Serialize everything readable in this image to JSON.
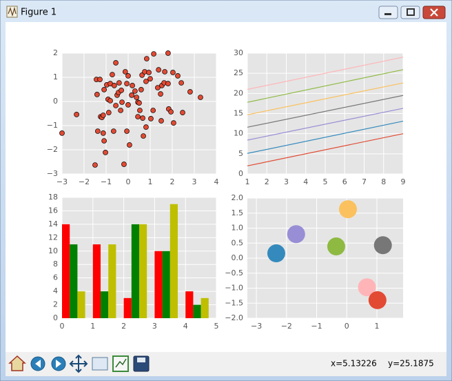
{
  "window": {
    "title": "Figure 1"
  },
  "status": {
    "x": "x=5.13226",
    "y": "y=25.1875"
  },
  "chart_data": [
    {
      "type": "scatter",
      "color": "#E24A33",
      "grid": true,
      "x": [
        -3,
        -2.34,
        -1.5,
        -1.44,
        -1.28,
        -1.41,
        -1.38,
        -1.25,
        -1.19,
        -1.13,
        -1.09,
        -1.03,
        -1.09,
        -1.13,
        -0.97,
        -0.91,
        -0.88,
        -0.81,
        -0.81,
        -0.72,
        -0.66,
        -0.63,
        -0.56,
        -0.56,
        -0.5,
        -0.44,
        -0.41,
        -0.34,
        -0.31,
        -0.28,
        -0.19,
        -0.13,
        -0.06,
        -0.06,
        0,
        0,
        0.06,
        0.16,
        0.19,
        0.31,
        0.38,
        0.44,
        0.44,
        0.5,
        0.53,
        0.59,
        0.63,
        0.66,
        0.69,
        0.75,
        0.81,
        0.81,
        0.94,
        0.84,
        1,
        1.03,
        1.13,
        1.16,
        1.34,
        1.38,
        1.47,
        1.5,
        1.53,
        1.63,
        1.66,
        1.81,
        1.84,
        1.81,
        1.94,
        2.03,
        2.06,
        2.25,
        2.41,
        2.47,
        2.81,
        3.28
      ],
      "values": [
        -1.31,
        -0.54,
        -2.63,
        0.91,
        0.91,
        0.29,
        -1.23,
        -0.63,
        -0.66,
        -1.31,
        -1.63,
        -2.11,
        0.49,
        -0.57,
        0.69,
        0.09,
        -0.46,
        0.03,
        0.74,
        1.11,
        -1.23,
        0.66,
        1.6,
        -0.17,
        0.26,
        0.37,
        0.77,
        -0.37,
        0.46,
        -0.03,
        -2.6,
        1.23,
        0.74,
        -1.23,
        -0.14,
        1.06,
        -1.8,
        0.26,
        0.66,
        0.43,
        0.17,
        -0.03,
        -0.63,
        -0.06,
        -0.37,
        0.49,
        1.09,
        -0.69,
        -1.43,
        1.23,
        0.83,
        -1.06,
        1.2,
        1.77,
        0.94,
        -0.71,
        -0.37,
        1.97,
        0.57,
        1.31,
        0.31,
        -0.8,
        0.66,
        0.77,
        1.23,
        0.74,
        -0.31,
        2,
        -0.43,
        1.2,
        -0.89,
        1.06,
        0.77,
        -0.46,
        0.4,
        0.17
      ],
      "xlim": [
        -3,
        4
      ],
      "ylim": [
        -3,
        2
      ],
      "xticks": [
        {
          "value": -3,
          "label": "−3"
        },
        {
          "value": -2,
          "label": "−2"
        },
        {
          "value": -1,
          "label": "−1"
        },
        0,
        1,
        2,
        3,
        4
      ],
      "yticks": [
        {
          "value": -3,
          "label": "−3"
        },
        {
          "value": -2,
          "label": "−2"
        },
        {
          "value": -1,
          "label": "−1"
        },
        0,
        1,
        2
      ]
    },
    {
      "type": "line",
      "grid": true,
      "x": [
        1,
        9
      ],
      "series": [
        {
          "color": "#E24A33",
          "values": [
            2,
            10
          ]
        },
        {
          "color": "#348ABD",
          "values": [
            5.1,
            13.1
          ]
        },
        {
          "color": "#988ED5",
          "values": [
            8.4,
            16.3
          ]
        },
        {
          "color": "#777777",
          "values": [
            11.6,
            19.5
          ]
        },
        {
          "color": "#FBC15E",
          "values": [
            14.7,
            22.6
          ]
        },
        {
          "color": "#8EBA42",
          "values": [
            17.8,
            25.9
          ]
        },
        {
          "color": "#FFB5B8",
          "values": [
            21,
            29
          ]
        }
      ],
      "xlim": [
        1,
        9
      ],
      "ylim": [
        0,
        30
      ],
      "xticks": [
        1,
        2,
        3,
        4,
        5,
        6,
        7,
        8,
        9
      ],
      "yticks": [
        0,
        5,
        10,
        15,
        20,
        25,
        30
      ]
    },
    {
      "type": "bar",
      "grid": true,
      "x": [
        0,
        1,
        2,
        3,
        4
      ],
      "series": [
        {
          "color": "#FF0000",
          "values": [
            14,
            11,
            3,
            10,
            4
          ]
        },
        {
          "color": "#008000",
          "values": [
            11,
            4,
            14,
            10,
            2
          ]
        },
        {
          "color": "#BFBF00",
          "values": [
            4,
            11,
            14,
            17,
            3
          ]
        }
      ],
      "xlim": [
        0,
        5
      ],
      "ylim": [
        0,
        18
      ],
      "xticks": [
        0,
        1,
        2,
        3,
        4,
        5
      ],
      "yticks": [
        0,
        2,
        4,
        6,
        8,
        10,
        12,
        14,
        16,
        18
      ]
    },
    {
      "type": "scatter",
      "grid": true,
      "series": [
        {
          "color": "#348ABD",
          "x": [
            -2.34
          ],
          "values": [
            0.16
          ]
        },
        {
          "color": "#988ED5",
          "x": [
            -1.68
          ],
          "values": [
            0.8
          ]
        },
        {
          "color": "#8EBA42",
          "x": [
            -0.35
          ],
          "values": [
            0.39
          ]
        },
        {
          "color": "#FBC15E",
          "x": [
            0.04
          ],
          "values": [
            1.63
          ]
        },
        {
          "color": "#777777",
          "x": [
            1.2
          ],
          "values": [
            0.43
          ]
        },
        {
          "color": "#FFB5B8",
          "x": [
            0.67
          ],
          "values": [
            -0.97
          ]
        },
        {
          "color": "#E24A33",
          "x": [
            1.02
          ],
          "values": [
            -1.4
          ]
        }
      ],
      "xlim": [
        -3.3,
        1.87
      ],
      "ylim": [
        -2,
        2
      ],
      "xticks": [
        {
          "value": -3,
          "label": "−3"
        },
        {
          "value": -2,
          "label": "−2"
        },
        {
          "value": -1,
          "label": "−1"
        },
        0,
        1
      ],
      "yticks": [
        {
          "value": -2,
          "label": "−2.0"
        },
        {
          "value": -1.5,
          "label": "−1.5"
        },
        {
          "value": -1,
          "label": "−1.0"
        },
        {
          "value": -0.5,
          "label": "−0.5"
        },
        {
          "value": 0,
          "label": "0.0"
        },
        0.5,
        {
          "value": 1,
          "label": "1.0"
        },
        1.5,
        {
          "value": 2,
          "label": "2.0"
        }
      ]
    }
  ]
}
